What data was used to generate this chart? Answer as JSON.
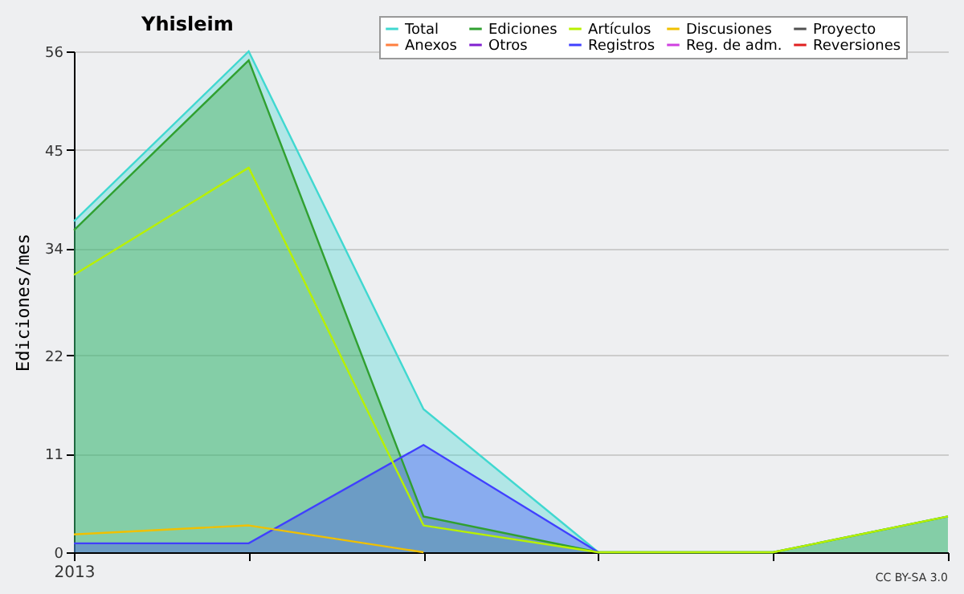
{
  "chart_data": {
    "type": "line",
    "title": "Yhisleim",
    "ylabel": "Ediciones/mes",
    "categories": [
      "2013",
      null,
      null,
      null,
      null,
      null
    ],
    "series": [
      {
        "name": "Total",
        "type": "area",
        "color": "#40d8d0",
        "values": [
          37,
          56,
          16,
          0,
          0,
          4
        ]
      },
      {
        "name": "Ediciones",
        "type": "area",
        "color": "#30a030",
        "values": [
          36,
          55,
          4,
          0,
          0,
          4
        ]
      },
      {
        "name": "Artículos",
        "color": "#b8f000",
        "values": [
          31,
          43,
          3,
          0,
          0,
          4
        ]
      },
      {
        "name": "Discusiones",
        "color": "#f0c000",
        "values": [
          2,
          3,
          0,
          null,
          null,
          null
        ]
      },
      {
        "name": "Proyecto",
        "color": "#505050",
        "values": [
          null,
          null,
          null,
          null,
          null,
          null
        ]
      },
      {
        "name": "Anexos",
        "color": "#ff7f3f",
        "values": [
          null,
          null,
          null,
          null,
          null,
          null
        ]
      },
      {
        "name": "Otros",
        "color": "#8020d0",
        "values": [
          null,
          null,
          null,
          null,
          null,
          null
        ]
      },
      {
        "name": "Registros",
        "type": "area",
        "color": "#4040ff",
        "values": [
          1,
          1,
          12,
          0,
          null,
          null
        ]
      },
      {
        "name": "Reg. de adm.",
        "color": "#d040e0",
        "values": [
          null,
          null,
          null,
          null,
          null,
          null
        ]
      },
      {
        "name": "Reversiones",
        "color": "#e02020",
        "values": [
          null,
          null,
          null,
          null,
          null,
          null
        ]
      }
    ],
    "ylim": [
      0,
      56
    ],
    "yticks": [
      0,
      11,
      22,
      34,
      45,
      56
    ],
    "grid": "y",
    "legend": "top right",
    "annotations": [
      "CC BY-SA 3.0"
    ]
  }
}
